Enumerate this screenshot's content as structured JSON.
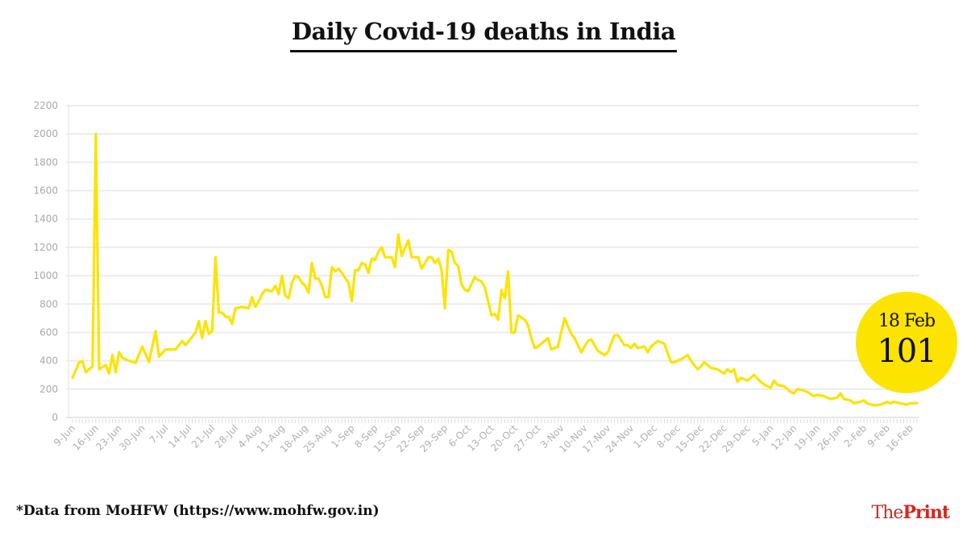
{
  "chart_data": {
    "type": "line",
    "title": "Daily Covid-19 deaths in India",
    "xlabel": "",
    "ylabel": "",
    "ylim": [
      0,
      2200
    ],
    "yticks": [
      "0",
      "200",
      "400",
      "600",
      "800",
      "1000",
      "1200",
      "1400",
      "1600",
      "1800",
      "2000",
      "2200"
    ],
    "xticks": [
      "9-Jun",
      "16-Jun",
      "23-Jun",
      "30-Jun",
      "7-Jul",
      "14-Jul",
      "21-Jul",
      "28-Jul",
      "4-Aug",
      "11-Aug",
      "18-Aug",
      "25-Aug",
      "1-Sep",
      "8-Sep",
      "15-Sep",
      "22-Sep",
      "29-Sep",
      "6-Oct",
      "13-Oct",
      "20-Oct",
      "27-Oct",
      "3-Nov",
      "10-Nov",
      "17-Nov",
      "24-Nov",
      "1-Dec",
      "8-Dec",
      "15-Dec",
      "22-Dec",
      "29-Dec",
      "5-Jan",
      "12-Jan",
      "19-Jan",
      "26-Jan",
      "2-Feb",
      "9-Feb",
      "16-Feb"
    ],
    "grid": true,
    "line_color": "#fce300",
    "series": [
      {
        "x": [
          "9-Jun",
          "11-Jun",
          "12-Jun",
          "13-Jun",
          "15-Jun",
          "16-Jun",
          "17-Jun",
          "19-Jun",
          "20-Jun",
          "21-Jun",
          "22-Jun",
          "23-Jun",
          "24-Jun",
          "26-Jun",
          "28-Jun",
          "30-Jun",
          "2-Jul",
          "4-Jul",
          "5-Jul",
          "7-Jul",
          "10-Jul",
          "12-Jul",
          "13-Jul",
          "16-Jul",
          "17-Jul",
          "18-Jul",
          "19-Jul",
          "20-Jul",
          "21-Jul",
          "22-Jul",
          "23-Jul",
          "24-Jul",
          "25-Jul",
          "26-Jul",
          "27-Jul",
          "28-Jul",
          "30-Jul",
          "1-Aug",
          "2-Aug",
          "3-Aug",
          "4-Aug",
          "5-Aug",
          "6-Aug",
          "8-Aug",
          "9-Aug",
          "10-Aug",
          "11-Aug",
          "12-Aug",
          "13-Aug",
          "14-Aug",
          "15-Aug",
          "16-Aug",
          "17-Aug",
          "18-Aug",
          "19-Aug",
          "20-Aug",
          "21-Aug",
          "22-Aug",
          "23-Aug",
          "24-Aug",
          "25-Aug",
          "26-Aug",
          "27-Aug",
          "28-Aug",
          "29-Aug",
          "31-Aug",
          "1-Sep",
          "2-Sep",
          "3-Sep",
          "4-Sep",
          "5-Sep",
          "6-Sep",
          "7-Sep",
          "8-Sep",
          "9-Sep",
          "10-Sep",
          "11-Sep",
          "13-Sep",
          "14-Sep",
          "15-Sep",
          "16-Sep",
          "18-Sep",
          "19-Sep",
          "21-Sep",
          "22-Sep",
          "23-Sep",
          "24-Sep",
          "25-Sep",
          "26-Sep",
          "27-Sep",
          "28-Sep",
          "29-Sep",
          "30-Sep",
          "1-Oct",
          "2-Oct",
          "3-Oct",
          "4-Oct",
          "5-Oct",
          "6-Oct",
          "8-Oct",
          "9-Oct",
          "10-Oct",
          "11-Oct",
          "13-Oct",
          "14-Oct",
          "15-Oct",
          "16-Oct",
          "17-Oct",
          "18-Oct",
          "19-Oct",
          "20-Oct",
          "21-Oct",
          "23-Oct",
          "24-Oct",
          "25-Oct",
          "26-Oct",
          "27-Oct",
          "28-Oct",
          "30-Oct",
          "31-Oct",
          "2-Nov",
          "4-Nov",
          "6-Nov",
          "7-Nov",
          "9-Nov",
          "11-Nov",
          "12-Nov",
          "14-Nov",
          "16-Nov",
          "17-Nov",
          "19-Nov",
          "20-Nov",
          "22-Nov",
          "23-Nov",
          "24-Nov",
          "25-Nov",
          "26-Nov",
          "28-Nov",
          "29-Nov",
          "30-Nov",
          "2-Dec",
          "4-Dec",
          "6-Dec",
          "7-Dec",
          "9-Dec",
          "11-Dec",
          "12-Dec",
          "14-Dec",
          "15-Dec",
          "16-Dec",
          "18-Dec",
          "20-Dec",
          "22-Dec",
          "23-Dec",
          "24-Dec",
          "25-Dec",
          "26-Dec",
          "27-Dec",
          "29-Dec",
          "31-Dec",
          "2-Jan",
          "4-Jan",
          "5-Jan",
          "6-Jan",
          "7-Jan",
          "9-Jan",
          "11-Jan",
          "12-Jan",
          "13-Jan",
          "15-Jan",
          "16-Jan",
          "18-Jan",
          "19-Jan",
          "21-Jan",
          "23-Jan",
          "25-Jan",
          "26-Jan",
          "27-Jan",
          "29-Jan",
          "30-Jan",
          "1-Feb",
          "2-Feb",
          "3-Feb",
          "5-Feb",
          "7-Feb",
          "9-Feb",
          "10-Feb",
          "11-Feb",
          "13-Feb",
          "15-Feb",
          "16-Feb",
          "18-Feb"
        ],
        "y": [
          280,
          390,
          395,
          320,
          360,
          2000,
          340,
          370,
          310,
          440,
          320,
          460,
          420,
          400,
          385,
          500,
          390,
          610,
          430,
          480,
          480,
          540,
          510,
          600,
          680,
          560,
          680,
          590,
          610,
          1130,
          740,
          740,
          710,
          710,
          660,
          770,
          780,
          770,
          850,
          780,
          820,
          870,
          900,
          890,
          930,
          870,
          1000,
          860,
          840,
          950,
          1000,
          990,
          950,
          930,
          880,
          1090,
          980,
          980,
          930,
          850,
          850,
          1060,
          1030,
          1050,
          1020,
          950,
          820,
          1040,
          1040,
          1090,
          1080,
          1020,
          1120,
          1110,
          1170,
          1200,
          1130,
          1130,
          1060,
          1290,
          1140,
          1250,
          1130,
          1130,
          1050,
          1090,
          1130,
          1130,
          1090,
          1120,
          1040,
          770,
          1180,
          1170,
          1090,
          1070,
          940,
          900,
          890,
          990,
          970,
          960,
          920,
          720,
          730,
          690,
          900,
          840,
          1030,
          600,
          600,
          720,
          690,
          650,
          560,
          490,
          500,
          520,
          560,
          480,
          500,
          700,
          590,
          560,
          460,
          540,
          550,
          470,
          440,
          460,
          580,
          580,
          510,
          510,
          490,
          520,
          490,
          500,
          460,
          500,
          540,
          520,
          390,
          390,
          410,
          440,
          400,
          340,
          360,
          390,
          350,
          340,
          310,
          340,
          320,
          340,
          250,
          280,
          260,
          300,
          250,
          220,
          210,
          260,
          230,
          220,
          180,
          170,
          200,
          190,
          180,
          150,
          160,
          150,
          130,
          140,
          170,
          130,
          120,
          100,
          110,
          120,
          100,
          85,
          90,
          110,
          100,
          110,
          100,
          90,
          100,
          101
        ]
      }
    ]
  },
  "badge": {
    "date": "18 Feb",
    "value": "101"
  },
  "footer": {
    "source": "*Data from MoHFW (https://www.mohfw.gov.in)",
    "logo_the": "The",
    "logo_print": "Print"
  }
}
